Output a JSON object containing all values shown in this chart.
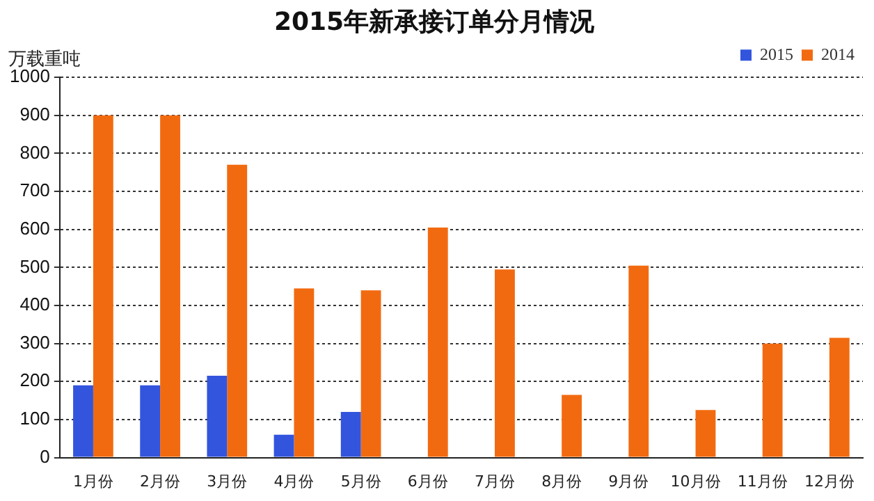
{
  "chart_data": {
    "type": "bar",
    "title": "2015年新承接订单分月情况",
    "ylabel": "万载重吨",
    "categories": [
      "1月份",
      "2月份",
      "3月份",
      "4月份",
      "5月份",
      "6月份",
      "7月份",
      "8月份",
      "9月份",
      "10月份",
      "11月份",
      "12月份"
    ],
    "series": [
      {
        "name": "2015",
        "color": "#3355dd",
        "values": [
          190,
          190,
          215,
          60,
          120,
          null,
          null,
          null,
          null,
          null,
          null,
          null
        ]
      },
      {
        "name": "2014",
        "color": "#f26a10",
        "values": [
          900,
          900,
          770,
          445,
          440,
          605,
          495,
          165,
          505,
          125,
          300,
          315
        ]
      }
    ],
    "ylim": [
      0,
      1000
    ],
    "yticks": [
      0,
      100,
      200,
      300,
      400,
      500,
      600,
      700,
      800,
      900,
      1000
    ],
    "grid": "y",
    "legend": "top right"
  }
}
